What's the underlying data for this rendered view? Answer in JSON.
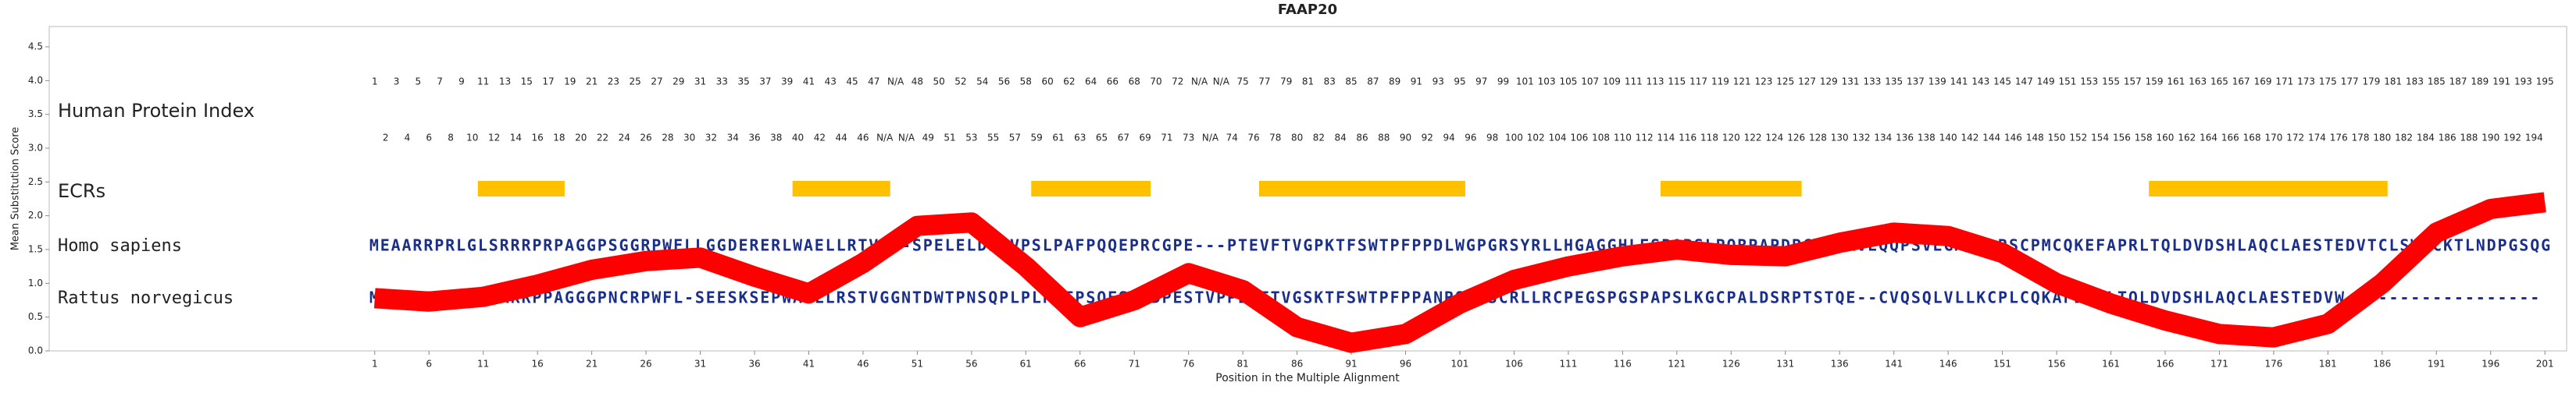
{
  "chart_data": {
    "type": "line",
    "title": "FAAP20",
    "y_label": "Mean Substitution Score",
    "x_label": "Position in the Multiple Alignment",
    "row_labels": {
      "index": "Human Protein Index",
      "ecrs": "ECRs",
      "seq1": "Homo sapiens",
      "seq2": "Rattus norvegicus"
    },
    "xlim": [
      -29,
      203
    ],
    "ylim": [
      0,
      4.8
    ],
    "xticks": [
      1,
      6,
      11,
      16,
      21,
      26,
      31,
      36,
      41,
      46,
      51,
      56,
      61,
      66,
      71,
      76,
      81,
      86,
      91,
      96,
      101,
      106,
      111,
      116,
      121,
      126,
      131,
      136,
      141,
      146,
      151,
      156,
      161,
      166,
      171,
      176,
      181,
      186,
      191,
      196,
      201
    ],
    "yticks": [
      {
        "value": 0,
        "label": "0.0"
      },
      0.5,
      {
        "value": 1,
        "label": "1.0"
      },
      1.5,
      {
        "value": 2,
        "label": "2.0"
      },
      2.5,
      {
        "value": 3,
        "label": "3.0"
      },
      3.5,
      {
        "value": 4,
        "label": "4.0"
      },
      4.5
    ],
    "human_index": [
      1,
      2,
      3,
      4,
      5,
      6,
      7,
      8,
      9,
      10,
      11,
      12,
      13,
      14,
      15,
      16,
      17,
      18,
      19,
      20,
      21,
      22,
      23,
      24,
      25,
      26,
      27,
      28,
      29,
      30,
      31,
      32,
      33,
      34,
      35,
      36,
      37,
      38,
      39,
      40,
      41,
      42,
      43,
      44,
      45,
      46,
      47,
      "N/A",
      "N/A",
      "N/A",
      48,
      49,
      50,
      51,
      52,
      53,
      54,
      55,
      56,
      57,
      58,
      59,
      60,
      61,
      62,
      63,
      64,
      65,
      66,
      67,
      68,
      69,
      70,
      71,
      72,
      73,
      "N/A",
      "N/A",
      "N/A",
      74,
      75,
      76,
      77,
      78,
      79,
      80,
      81,
      82,
      83,
      84,
      85,
      86,
      87,
      88,
      89,
      90,
      91,
      92,
      93,
      94,
      95,
      96,
      97,
      98,
      99,
      100,
      101,
      102,
      103,
      104,
      105,
      106,
      107,
      108,
      109,
      110,
      111,
      112,
      113,
      114,
      115,
      116,
      117,
      118,
      119,
      120,
      121,
      122,
      123,
      124,
      125,
      126,
      127,
      128,
      129,
      130,
      131,
      132,
      133,
      134,
      135,
      136,
      137,
      138,
      139,
      140,
      141,
      142,
      143,
      144,
      145,
      146,
      147,
      148,
      149,
      150,
      151,
      152,
      153,
      154,
      155,
      156,
      157,
      158,
      159,
      160,
      161,
      162,
      163,
      164,
      165,
      166,
      167,
      168,
      169,
      170,
      171,
      172,
      173,
      174,
      175,
      176,
      177,
      178,
      179,
      180,
      181,
      182,
      183,
      184,
      185,
      186,
      187,
      188,
      189,
      190,
      191,
      192,
      193,
      194,
      195
    ],
    "ecrs": [
      {
        "start": 11,
        "end": 18
      },
      {
        "start": 40,
        "end": 48
      },
      {
        "start": 62,
        "end": 72
      },
      {
        "start": 83,
        "end": 101
      },
      {
        "start": 120,
        "end": 132
      },
      {
        "start": 165,
        "end": 186
      }
    ],
    "ecr_color": "#ffc000",
    "sequences": [
      {
        "name": "Homo sapiens",
        "color": "#1a2f8a",
        "seq": "MEAARRPRLGLSRRRPRPAGGPSGGRPWFLLGGDERERLWAELLRTV---SPELELDHEVPSLPAFPQQEPRCGPE---PTEVFTVGPKTFSWTPFPPDLWGPGRSYRLLHGAGGHLESPARSLPQRPAPDPCRAPRVEQQPSVEGAAALRSCPMCQKEFAPRLTQLDVDSHLAQCLAESTEDVTCLSWMCKTLNDPGSQG"
      },
      {
        "name": "Rattus norvegicus",
        "color": "#1a2f8a",
        "seq": "MEEERRLAGRLSRRRPPAGGGPNCRPWFL-SEESKSEPWAALLRSTVGGNTDWTPNSQPLPLPAFPSQESLPDPESTVPPEVFTVGSKTFSWTPFPPANRSGSSCRLLRCPEGSPGSPAPSLKGCPALDSRPTSTQE--CVQSQLVLLKCPLCQKAFDPKLTQLDVDSHLAQCLAESTEDVW------------------"
      }
    ],
    "series": [
      {
        "name": "Mean Substitution Score",
        "color": "#ff0000",
        "x": [
          1,
          6,
          11,
          16,
          21,
          26,
          31,
          36,
          41,
          46,
          51,
          56,
          61,
          66,
          71,
          76,
          81,
          86,
          91,
          96,
          101,
          106,
          111,
          116,
          121,
          126,
          131,
          136,
          141,
          146,
          151,
          156,
          161,
          166,
          171,
          176,
          181,
          186,
          191,
          196,
          201
        ],
        "values": [
          0.78,
          0.73,
          0.8,
          0.98,
          1.2,
          1.33,
          1.38,
          1.1,
          0.85,
          1.3,
          1.85,
          1.9,
          1.25,
          0.5,
          0.75,
          1.15,
          0.9,
          0.35,
          0.12,
          0.25,
          0.7,
          1.05,
          1.25,
          1.4,
          1.5,
          1.42,
          1.4,
          1.6,
          1.75,
          1.7,
          1.45,
          1.0,
          0.7,
          0.45,
          0.25,
          0.2,
          0.4,
          1.0,
          1.75,
          2.1,
          2.2
        ]
      }
    ]
  }
}
